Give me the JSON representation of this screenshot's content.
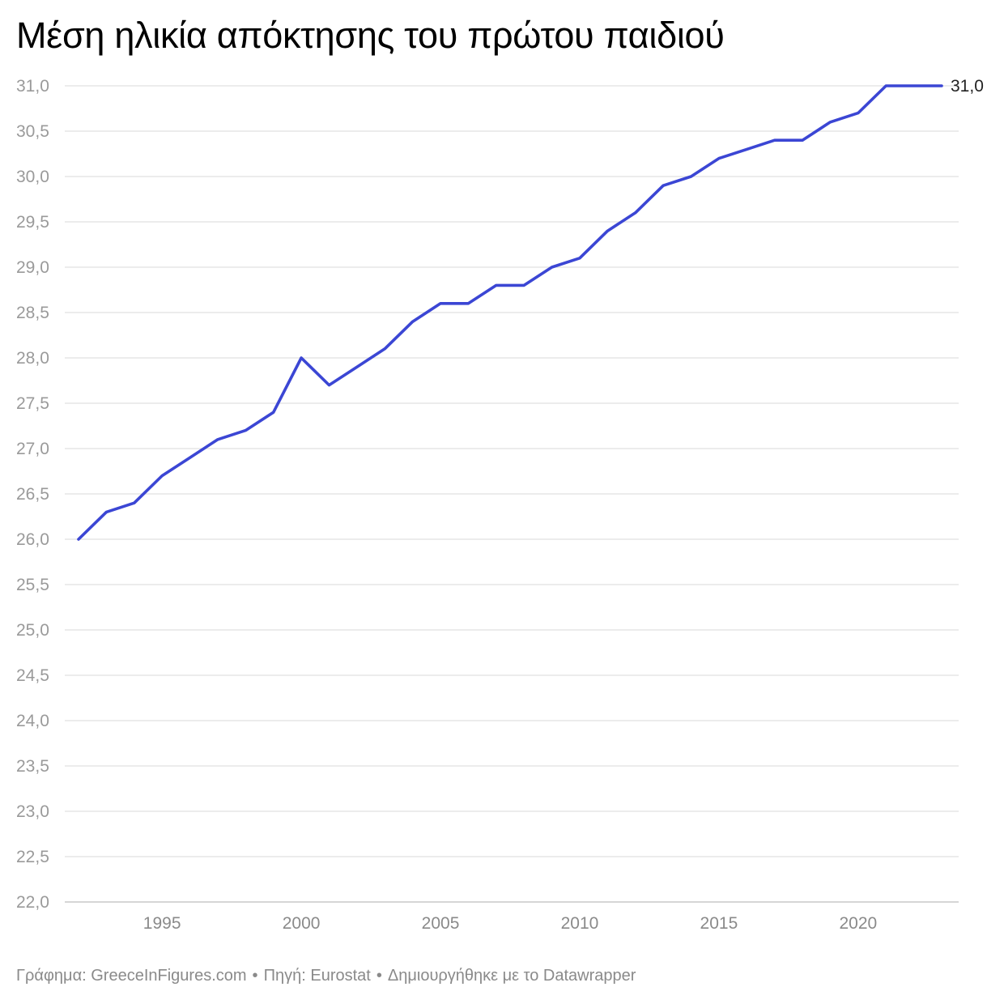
{
  "chart_data": {
    "type": "line",
    "title": "Μέση ηλικία απόκτησης του πρώτου παιδιού",
    "x": [
      1992,
      1993,
      1994,
      1995,
      1996,
      1997,
      1998,
      1999,
      2000,
      2001,
      2002,
      2003,
      2004,
      2005,
      2006,
      2007,
      2008,
      2009,
      2010,
      2011,
      2012,
      2013,
      2014,
      2015,
      2016,
      2017,
      2018,
      2019,
      2020,
      2021,
      2022,
      2023
    ],
    "series": [
      {
        "values": [
          26.0,
          26.3,
          26.4,
          26.7,
          26.9,
          27.1,
          27.2,
          27.4,
          28.0,
          27.7,
          27.9,
          28.1,
          28.4,
          28.6,
          28.6,
          28.8,
          28.8,
          29.0,
          29.1,
          29.4,
          29.6,
          29.9,
          30.0,
          30.2,
          30.3,
          30.4,
          30.4,
          30.6,
          30.7,
          31.0,
          31.0,
          31.0
        ],
        "color": "#3b46d4"
      }
    ],
    "end_label": "31,0",
    "xlim": [
      1992,
      2023
    ],
    "ylim": [
      22.0,
      31.0
    ],
    "x_ticks": [
      1995,
      2000,
      2005,
      2010,
      2015,
      2020
    ],
    "x_tick_labels": [
      "1995",
      "2000",
      "2005",
      "2010",
      "2015",
      "2020"
    ],
    "y_ticks": [
      22.0,
      22.5,
      23.0,
      23.5,
      24.0,
      24.5,
      25.0,
      25.5,
      26.0,
      26.5,
      27.0,
      27.5,
      28.0,
      28.5,
      29.0,
      29.5,
      30.0,
      30.5,
      31.0
    ],
    "y_tick_labels": [
      "22,0",
      "22,5",
      "23,0",
      "23,5",
      "24,0",
      "24,5",
      "25,0",
      "25,5",
      "26,0",
      "26,5",
      "27,0",
      "27,5",
      "28,0",
      "28,5",
      "29,0",
      "29,5",
      "30,0",
      "30,5",
      "31,0"
    ],
    "grid": true,
    "gridline_color": "#e0e0e0",
    "xlabel": "",
    "ylabel": ""
  },
  "footer": {
    "graphic": "Γράφημα: GreeceInFigures.com",
    "separator": "•",
    "source": "Πηγή: Eurostat",
    "created_with": "Δημιουργήθηκε με το Datawrapper"
  }
}
